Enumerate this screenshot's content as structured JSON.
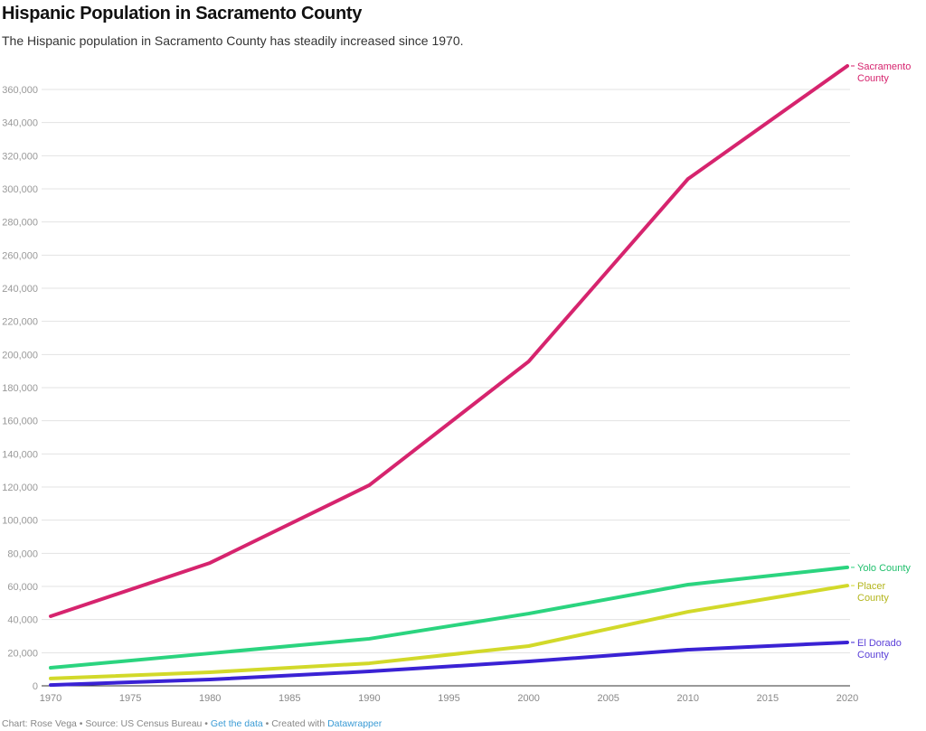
{
  "header": {
    "title": "Hispanic Population in Sacramento County",
    "subtitle": "The Hispanic population in Sacramento County has steadily increased since 1970."
  },
  "footer": {
    "chart_by": "Chart: Rose Vega",
    "sep1": " • ",
    "source": "Source: US Census Bureau",
    "sep2": " • ",
    "get_data": "Get the data",
    "sep3": " • ",
    "created": "Created with ",
    "datawrapper": "Datawrapper"
  },
  "chart_data": {
    "type": "line",
    "title": "Hispanic Population in Sacramento County",
    "x": [
      1970,
      1980,
      1990,
      2000,
      2010,
      2020
    ],
    "xticks": [
      "1970",
      "1975",
      "1980",
      "1985",
      "1990",
      "1995",
      "2000",
      "2005",
      "2010",
      "2015",
      "2020"
    ],
    "yticks": [
      "0",
      "20,000",
      "40,000",
      "60,000",
      "80,000",
      "100,000",
      "120,000",
      "140,000",
      "160,000",
      "180,000",
      "200,000",
      "220,000",
      "240,000",
      "260,000",
      "280,000",
      "300,000",
      "320,000",
      "340,000",
      "360,000"
    ],
    "xlim": [
      1970,
      2020
    ],
    "ylim": [
      0,
      360000
    ],
    "grid": true,
    "series": [
      {
        "name": "Sacramento County",
        "label_lines": [
          "Sacramento",
          "County"
        ],
        "color": "#d6246e",
        "label_color": "#d6246e",
        "values": [
          42000,
          74200,
          121100,
          195800,
          306000,
          374200
        ]
      },
      {
        "name": "Yolo County",
        "label_lines": [
          "Yolo County"
        ],
        "color": "#2bd47f",
        "label_color": "#1fbf6c",
        "values": [
          10900,
          19600,
          28400,
          43600,
          61100,
          71500
        ]
      },
      {
        "name": "Placer County",
        "label_lines": [
          "Placer",
          "County"
        ],
        "color": "#d2d92a",
        "label_color": "#b3b51c",
        "values": [
          4400,
          8200,
          13600,
          24000,
          44700,
          60500
        ]
      },
      {
        "name": "El Dorado County",
        "label_lines": [
          "El Dorado",
          "County"
        ],
        "color": "#3a22d4",
        "label_color": "#5a3fd8",
        "values": [
          500,
          3800,
          8700,
          14700,
          21800,
          26200
        ]
      }
    ]
  }
}
